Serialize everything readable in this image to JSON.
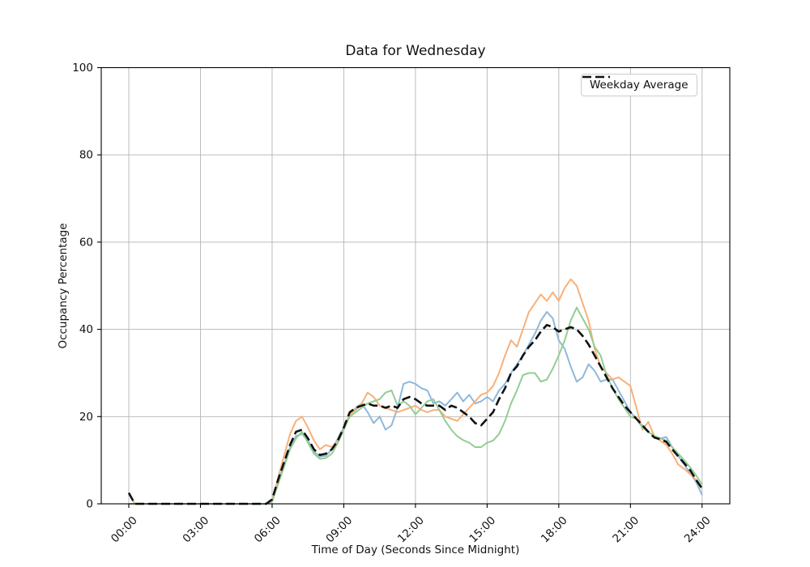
{
  "figure": {
    "background": "#ffffff",
    "grid_color": "#b4b4b4",
    "spine_color": "#000000"
  },
  "chart_data": {
    "type": "line",
    "title": "Data for Wednesday",
    "xlabel": "Time of Day (Seconds Since Midnight)",
    "ylabel": "Occupancy Percentage",
    "grid": true,
    "ylim": [
      0,
      100
    ],
    "y_ticks": [
      0,
      20,
      40,
      60,
      80,
      100
    ],
    "x_tick_hours": [
      0,
      3,
      6,
      9,
      12,
      15,
      18,
      21,
      24
    ],
    "x_tick_labels": [
      "00:00",
      "03:00",
      "06:00",
      "09:00",
      "12:00",
      "15:00",
      "18:00",
      "21:00",
      "24:00"
    ],
    "x_start_hour": 0,
    "x_step_hours": 0.25,
    "legend": {
      "position": "upper right",
      "entries": [
        {
          "label": "Weekday Average",
          "style": "dashed",
          "color": "#111111"
        }
      ]
    },
    "series": [
      {
        "name": "series-1",
        "color": "#8fb8dc",
        "style": "solid",
        "width": 2,
        "values": [
          0,
          0,
          0,
          0,
          0,
          0,
          0,
          0,
          0,
          0,
          0,
          0,
          0,
          0,
          0,
          0,
          0,
          0,
          0,
          0,
          0,
          0,
          0,
          0,
          0.5,
          5,
          9,
          13,
          15.5,
          16,
          14.5,
          12,
          10.8,
          11,
          12.5,
          15,
          17.5,
          20.5,
          22,
          23,
          21,
          18.5,
          20,
          17,
          18,
          22,
          27.5,
          28,
          27.5,
          26.5,
          26,
          23,
          23.5,
          22.5,
          24,
          25.5,
          23.5,
          25,
          23,
          23.5,
          24.5,
          23.5,
          26,
          27.5,
          30,
          32,
          34,
          36.5,
          39,
          42,
          44,
          42.5,
          37.5,
          35.5,
          31.5,
          28,
          29,
          32,
          30.5,
          28,
          28.5,
          28.5,
          26,
          23.5,
          21,
          19.5,
          18,
          16.5,
          15.5,
          15,
          15.3,
          13,
          11,
          9,
          7,
          5,
          2
        ]
      },
      {
        "name": "series-2",
        "color": "#f9b078",
        "style": "solid",
        "width": 2,
        "values": [
          2.5,
          0,
          0,
          0,
          0,
          0,
          0,
          0,
          0,
          0,
          0,
          0,
          0,
          0,
          0,
          0,
          0,
          0,
          0,
          0,
          0,
          0,
          0,
          0,
          0.5,
          6,
          11,
          16,
          19,
          20,
          17.5,
          14.5,
          12.5,
          13.5,
          13,
          14.5,
          17,
          20.5,
          21.5,
          23,
          25.5,
          24.5,
          22.5,
          22,
          21.5,
          21,
          21.5,
          22,
          22.5,
          21.5,
          21,
          21.5,
          21.5,
          20,
          19.5,
          19,
          20.5,
          22,
          23.5,
          25,
          25.5,
          27,
          30,
          34,
          37.5,
          36,
          40,
          44,
          46,
          48,
          46.5,
          48.5,
          46.5,
          49.5,
          51.5,
          50,
          46,
          42,
          35.5,
          31.5,
          30,
          28.5,
          29,
          28,
          27,
          22,
          17,
          18.8,
          15.5,
          14.5,
          13.5,
          11.5,
          9,
          8,
          6.8,
          5.5,
          3.5
        ]
      },
      {
        "name": "series-3",
        "color": "#93cd93",
        "style": "solid",
        "width": 2,
        "values": [
          0,
          0,
          0,
          0,
          0,
          0,
          0,
          0,
          0,
          0,
          0,
          0,
          0,
          0,
          0,
          0,
          0,
          0,
          0,
          0,
          0,
          0,
          0,
          0,
          0.5,
          4.5,
          8.5,
          12.5,
          15,
          16.5,
          14,
          11.5,
          10.3,
          10.5,
          11.5,
          14,
          17,
          20,
          21,
          22,
          23,
          23.5,
          24,
          25.5,
          26,
          22.5,
          23.5,
          22.5,
          20.5,
          22,
          23.5,
          24,
          21.5,
          19,
          17,
          15.5,
          14.6,
          14,
          13,
          13,
          14,
          14.5,
          16,
          19,
          23,
          26,
          29.5,
          30,
          30,
          28,
          28.5,
          31,
          34,
          37.5,
          42,
          45,
          42.5,
          40,
          36,
          34,
          29.5,
          26.5,
          24,
          22,
          20,
          19.5,
          17.5,
          16.5,
          15.5,
          15,
          14.5,
          13,
          11.5,
          10,
          8.4,
          6.5,
          4.4
        ]
      },
      {
        "name": "weekday-average",
        "color": "#111111",
        "style": "dashed",
        "width": 2.6,
        "values": [
          2.5,
          0,
          0,
          0,
          0,
          0,
          0,
          0,
          0,
          0,
          0,
          0,
          0,
          0,
          0,
          0,
          0,
          0,
          0,
          0,
          0,
          0,
          0,
          0,
          1,
          5.5,
          9.5,
          13.5,
          16.5,
          17,
          15,
          12.5,
          11.2,
          11.5,
          12.5,
          14.5,
          17.5,
          21,
          22,
          22.5,
          23,
          22.5,
          22.5,
          22,
          22.5,
          22,
          24,
          24.5,
          24,
          23,
          22.5,
          22.5,
          22.5,
          21.5,
          22.5,
          22,
          21,
          20,
          18.5,
          18,
          19.5,
          21,
          24,
          26.5,
          30,
          31.5,
          34,
          36,
          37.5,
          39.5,
          41,
          40.5,
          39.5,
          40,
          40.5,
          40,
          38.5,
          36.5,
          34,
          31.5,
          29,
          26.5,
          24.5,
          22.5,
          21,
          19.5,
          18,
          16.5,
          15.2,
          14.8,
          14.2,
          12.5,
          10.9,
          9.3,
          7.7,
          5.5,
          3.5
        ]
      }
    ]
  }
}
